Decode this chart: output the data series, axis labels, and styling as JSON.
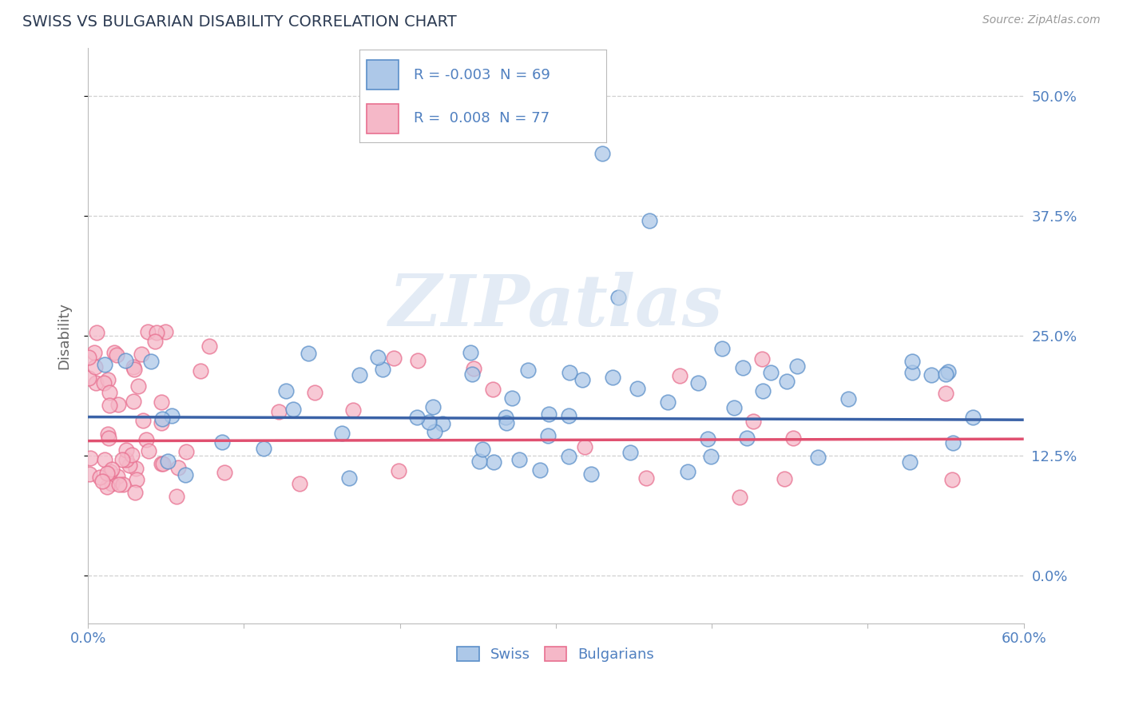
{
  "title": "SWISS VS BULGARIAN DISABILITY CORRELATION CHART",
  "source_text": "Source: ZipAtlas.com",
  "ylabel": "Disability",
  "xlim": [
    0.0,
    0.6
  ],
  "ylim": [
    -0.05,
    0.55
  ],
  "legend_r_swiss": "-0.003",
  "legend_n_swiss": "69",
  "legend_r_bulg": "0.008",
  "legend_n_bulg": "77",
  "swiss_color": "#adc8e8",
  "swiss_edge_color": "#5b8fc9",
  "swiss_line_color": "#3a62a7",
  "bulg_color": "#f5b8c8",
  "bulg_edge_color": "#e87090",
  "bulg_line_color": "#e05070",
  "background_color": "#ffffff",
  "grid_color": "#d0d0d0",
  "title_color": "#2b3a52",
  "axis_label_color": "#666666",
  "right_tick_color": "#5080c0",
  "watermark": "ZIPatlas",
  "ytick_positions": [
    0.0,
    0.125,
    0.25,
    0.375,
    0.5
  ],
  "ytick_labels": [
    "0.0%",
    "12.5%",
    "25.0%",
    "37.5%",
    "50.0%"
  ],
  "xtick_positions": [
    0.0,
    0.1,
    0.2,
    0.3,
    0.4,
    0.5,
    0.6
  ],
  "xtick_labels": [
    "0.0%",
    "",
    "",
    "",
    "",
    "",
    "60.0%"
  ],
  "swiss_line_y_at_0": 0.165,
  "swiss_line_y_at_60": 0.162,
  "bulg_line_y_at_0": 0.14,
  "bulg_line_y_at_60": 0.142
}
